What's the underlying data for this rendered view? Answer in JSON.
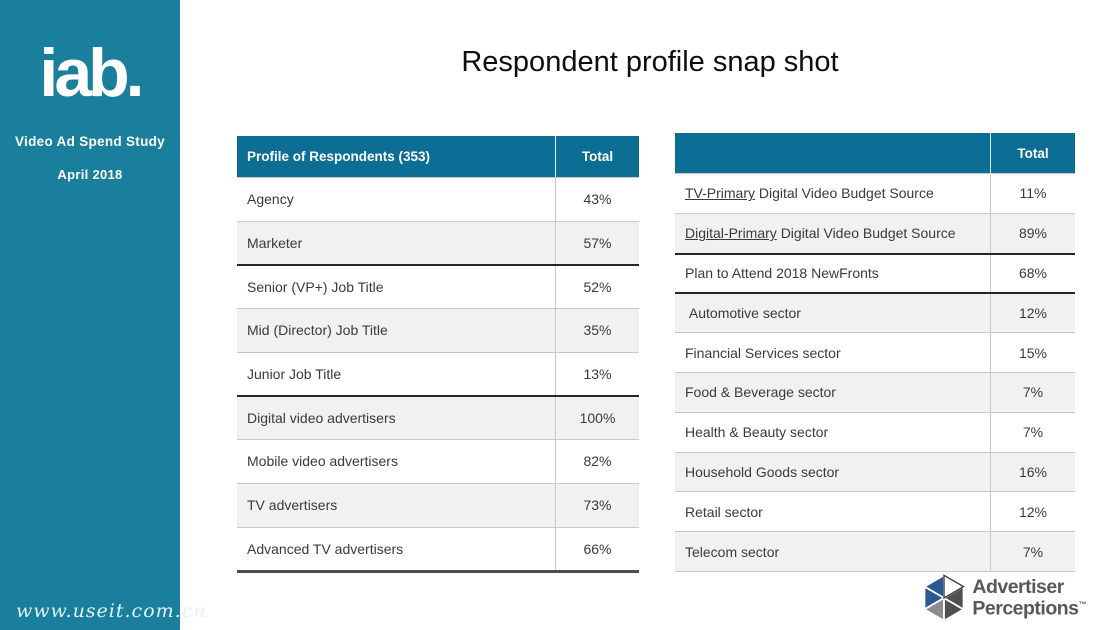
{
  "slide": {
    "title": "Respondent profile snap shot"
  },
  "sidebar": {
    "logo_text": "iab.",
    "study_title": "Video Ad Spend Study",
    "date": "April 2018",
    "watermark": "www.useit.com.cn"
  },
  "tables": [
    {
      "name": "profile-of-respondents",
      "header": {
        "label": "Profile of Respondents (353)",
        "total": "Total"
      },
      "rows": [
        {
          "prefix": "",
          "label": "Agency",
          "value": "43%"
        },
        {
          "prefix": "",
          "label": "Marketer",
          "value": "57%"
        },
        {
          "prefix": "",
          "label": "Senior (VP+) Job Title",
          "value": "52%",
          "thick_top": true
        },
        {
          "prefix": "",
          "label": "Mid (Director) Job Title",
          "value": "35%"
        },
        {
          "prefix": "",
          "label": "Junior Job Title",
          "value": "13%"
        },
        {
          "prefix": "",
          "label": "Digital video advertisers",
          "value": "100%",
          "thick_top": true
        },
        {
          "prefix": "",
          "label": "Mobile video advertisers",
          "value": "82%"
        },
        {
          "prefix": "",
          "label": "TV advertisers",
          "value": "73%"
        },
        {
          "prefix": "",
          "label": "Advanced TV advertisers",
          "value": "66%"
        }
      ]
    },
    {
      "name": "budget-source-and-sectors",
      "header": {
        "label": "",
        "total": "Total"
      },
      "rows": [
        {
          "prefix": "TV-Primary",
          "label": " Digital Video Budget Source",
          "value": "11%"
        },
        {
          "prefix": "Digital-Primary",
          "label": " Digital Video Budget Source",
          "value": "89%"
        },
        {
          "prefix": "",
          "label": "Plan to Attend 2018 NewFronts",
          "value": "68%",
          "thick_top": true
        },
        {
          "prefix": "",
          "label": " Automotive sector",
          "value": "12%",
          "thick_top": true
        },
        {
          "prefix": "",
          "label": "Financial Services sector",
          "value": "15%"
        },
        {
          "prefix": "",
          "label": "Food & Beverage sector",
          "value": "7%"
        },
        {
          "prefix": "",
          "label": "Health & Beauty sector",
          "value": "7%"
        },
        {
          "prefix": "",
          "label": "Household Goods sector",
          "value": "16%"
        },
        {
          "prefix": "",
          "label": "Retail sector",
          "value": "12%"
        },
        {
          "prefix": "",
          "label": "Telecom sector",
          "value": "7%"
        }
      ]
    }
  ],
  "footer_logo": {
    "line1": "Advertiser",
    "line2": "Perceptions",
    "tm": "™"
  },
  "colors": {
    "sidebar_teal": "#1a7f9d",
    "header_teal": "#0d6e95",
    "alt_row_gray": "#f1f1f1",
    "logo_blue": "#2a5891",
    "logo_dark_gray": "#4e5052",
    "logo_mid_gray": "#8a8c8e",
    "text_gray": "#57585a"
  }
}
